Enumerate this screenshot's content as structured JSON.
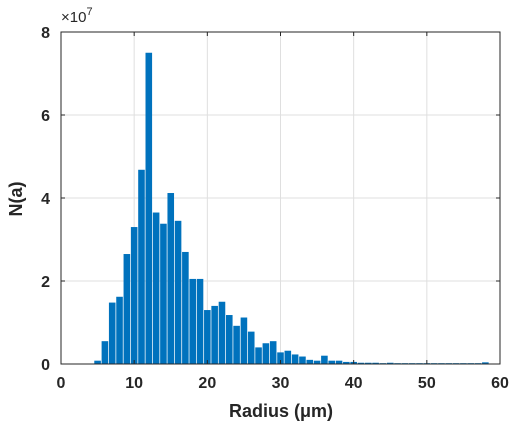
{
  "chart_data": {
    "type": "bar",
    "xlabel": "Radius (μm)",
    "ylabel": "N(a)",
    "y_exponent_label": "×10",
    "y_exponent_power": "7",
    "xlim": [
      0,
      60
    ],
    "ylim": [
      0,
      8
    ],
    "y_multiplier": 10000000,
    "xticks": [
      0,
      10,
      20,
      30,
      40,
      50,
      60
    ],
    "yticks": [
      0,
      2,
      4,
      6,
      8
    ],
    "grid": true,
    "bar_color": "#0072BD",
    "bin_width": 1,
    "x": [
      5,
      6,
      7,
      8,
      9,
      10,
      11,
      12,
      13,
      14,
      15,
      16,
      17,
      18,
      19,
      20,
      21,
      22,
      23,
      24,
      25,
      26,
      27,
      28,
      29,
      30,
      31,
      32,
      33,
      34,
      35,
      36,
      37,
      38,
      39,
      40,
      41,
      42,
      43,
      44,
      45,
      46,
      47,
      48,
      49,
      50,
      51,
      52,
      53,
      54,
      55,
      56,
      57,
      58
    ],
    "values": [
      0.08,
      0.55,
      1.48,
      1.62,
      2.65,
      3.3,
      4.68,
      7.5,
      3.65,
      3.38,
      4.12,
      3.45,
      2.7,
      2.05,
      2.05,
      1.3,
      1.4,
      1.5,
      1.18,
      0.92,
      1.12,
      0.78,
      0.4,
      0.5,
      0.55,
      0.28,
      0.32,
      0.23,
      0.18,
      0.1,
      0.08,
      0.2,
      0.08,
      0.08,
      0.05,
      0.05,
      0.03,
      0.03,
      0.03,
      0.02,
      0.03,
      0.02,
      0.02,
      0.02,
      0.02,
      0.02,
      0.02,
      0.02,
      0.02,
      0.02,
      0.02,
      0.02,
      0.02,
      0.04
    ]
  }
}
